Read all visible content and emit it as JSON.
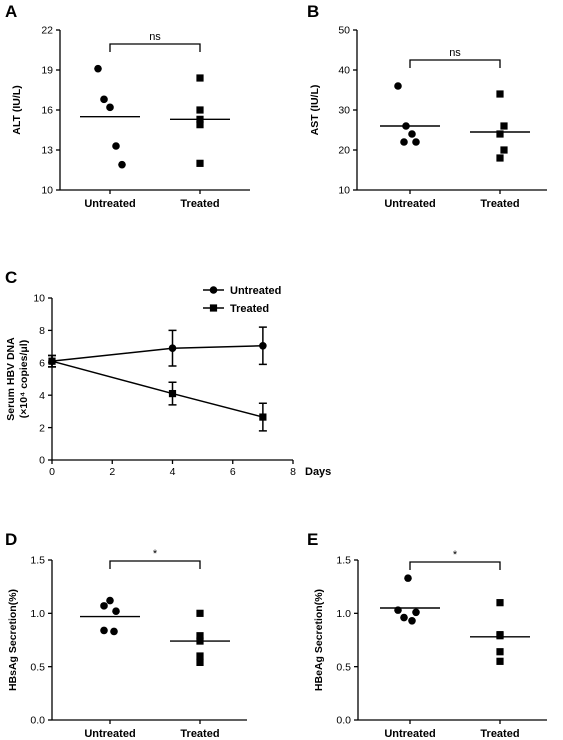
{
  "chart_data": [
    {
      "panel": "A",
      "type": "scatter",
      "ylabel": "ALT (IU/L)",
      "ylim": [
        10,
        22
      ],
      "yticks": [
        10,
        13,
        16,
        19,
        22
      ],
      "categories": [
        "Untreated",
        "Treated"
      ],
      "series": [
        {
          "values": [
            19.1,
            16.8,
            16.2,
            13.3,
            11.9
          ],
          "mean": 15.5,
          "marker": "circle"
        },
        {
          "values": [
            18.4,
            16.0,
            15.3,
            14.9,
            12.0
          ],
          "mean": 15.3,
          "marker": "square"
        }
      ],
      "significance": "ns"
    },
    {
      "panel": "B",
      "type": "scatter",
      "ylabel": "AST (IU/L)",
      "ylim": [
        10,
        50
      ],
      "yticks": [
        10,
        20,
        30,
        40,
        50
      ],
      "categories": [
        "Untreated",
        "Treated"
      ],
      "series": [
        {
          "values": [
            36,
            26,
            24,
            22,
            22
          ],
          "mean": 26,
          "marker": "circle"
        },
        {
          "values": [
            34,
            26,
            24,
            20,
            18
          ],
          "mean": 24.5,
          "marker": "square"
        }
      ],
      "significance": "ns"
    },
    {
      "panel": "C",
      "type": "line",
      "ylabel": "Serum HBV DNA",
      "ylabel2": "(×10⁴ copies/μl)",
      "xlabel": "Days",
      "xlim": [
        0,
        8
      ],
      "ylim": [
        0,
        10
      ],
      "xticks": [
        0,
        2,
        4,
        6,
        8
      ],
      "yticks": [
        0,
        2,
        4,
        6,
        8,
        10
      ],
      "legend_position": "top-right",
      "series": [
        {
          "name": "Untreated",
          "marker": "circle",
          "x": [
            0,
            4,
            7
          ],
          "y": [
            6.1,
            6.9,
            7.05
          ],
          "err": [
            0.35,
            1.1,
            1.15
          ]
        },
        {
          "name": "Treated",
          "marker": "square",
          "x": [
            0,
            4,
            7
          ],
          "y": [
            6.1,
            4.1,
            2.65
          ],
          "err": [
            0.35,
            0.7,
            0.85
          ]
        }
      ]
    },
    {
      "panel": "D",
      "type": "scatter",
      "ylabel": "HBsAg Secretion(%)",
      "ylim": [
        0,
        1.5
      ],
      "yticks": [
        0.0,
        0.5,
        1.0,
        1.5
      ],
      "ytick_labels": [
        "0.0",
        "0.5",
        "1.0",
        "1.5"
      ],
      "categories": [
        "Untreated",
        "Treated"
      ],
      "series": [
        {
          "values": [
            1.12,
            1.07,
            1.02,
            0.84,
            0.83
          ],
          "mean": 0.97,
          "marker": "circle"
        },
        {
          "values": [
            1.0,
            0.79,
            0.74,
            0.6,
            0.54
          ],
          "mean": 0.74,
          "marker": "square"
        }
      ],
      "significance": "*"
    },
    {
      "panel": "E",
      "type": "scatter",
      "ylabel": "HBeAg Secretion(%)",
      "ylim": [
        0,
        1.5
      ],
      "yticks": [
        0.0,
        0.5,
        1.0,
        1.5
      ],
      "ytick_labels": [
        "0.0",
        "0.5",
        "1.0",
        "1.5"
      ],
      "categories": [
        "Untreated",
        "Treated"
      ],
      "series": [
        {
          "values": [
            1.33,
            1.03,
            1.01,
            0.96,
            0.93
          ],
          "mean": 1.05,
          "marker": "circle"
        },
        {
          "values": [
            1.1,
            0.8,
            0.79,
            0.64,
            0.55
          ],
          "mean": 0.78,
          "marker": "square"
        }
      ],
      "significance": "*"
    }
  ]
}
